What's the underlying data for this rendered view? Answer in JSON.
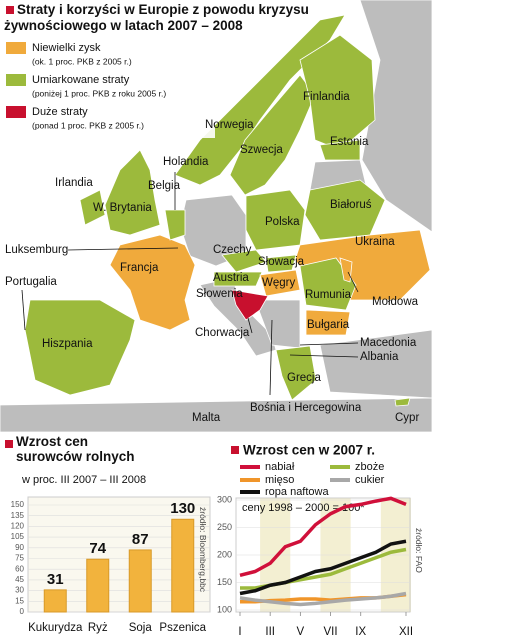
{
  "map": {
    "title": "Straty i korzyści w Europie z powodu kryzysu żywnościowego w latach 2007 – 2008",
    "legend": [
      {
        "label": "Niewielki zysk",
        "note": "(ok. 1 proc. PKB z 2005 r.)",
        "color": "#f0aa3c"
      },
      {
        "label": "Umiarkowane straty",
        "note": "(poniżej 1 proc. PKB z roku 2005 r.)",
        "color": "#9cba3c"
      },
      {
        "label": "Duże straty",
        "note": "(ponad 1 proc. PKB z 2005 r.)",
        "color": "#c8102e"
      }
    ],
    "labels": [
      "Finlandia",
      "Norwegia",
      "Szwecja",
      "Estonia",
      "Holandia",
      "Irlandia",
      "Belgia",
      "W. Brytania",
      "Białoruś",
      "Polska",
      "Ukraina",
      "Luksemburg",
      "Czechy",
      "Słowacja",
      "Francja",
      "Węgry",
      "Austria",
      "Portugalia",
      "Rumunia",
      "Słowenia",
      "Mołdowa",
      "Chorwacja",
      "Bułgaria",
      "Hiszpania",
      "Macedonia",
      "Albania",
      "Grecja",
      "Malta",
      "Bośnia i Hercegowina",
      "Cypr"
    ]
  },
  "chart_data": [
    {
      "type": "bar",
      "title": "Wzrost cen surowców rolnych",
      "subtitle": "w proc. III 2007 – III 2008",
      "categories": [
        "Kukurydza",
        "Ryż",
        "Soja",
        "Pszenica"
      ],
      "values": [
        31,
        74,
        87,
        130
      ],
      "color": "#f2b33d",
      "ylim": [
        0,
        150
      ],
      "yticks": [
        0,
        15,
        30,
        45,
        60,
        75,
        90,
        105,
        120,
        135,
        150
      ],
      "source": "źródło: Bloomberg,bbc"
    },
    {
      "type": "line",
      "title": "Wzrost cen w 2007 r.",
      "note": "ceny 1998 – 2000 = 100*",
      "categories": [
        "I",
        null,
        "III",
        null,
        "V",
        null,
        "VII",
        null,
        "IX",
        null,
        null,
        "XII"
      ],
      "series": [
        {
          "name": "nabiał",
          "color": "#d0103a",
          "values": [
            163,
            170,
            185,
            215,
            225,
            255,
            275,
            288,
            292,
            298,
            303,
            292
          ]
        },
        {
          "name": "zboże",
          "color": "#9cba3c",
          "values": [
            140,
            140,
            145,
            150,
            155,
            160,
            165,
            175,
            185,
            195,
            205,
            210
          ]
        },
        {
          "name": "mięso",
          "color": "#f0952a",
          "values": [
            115,
            115,
            117,
            118,
            120,
            120,
            118,
            120,
            122,
            122,
            125,
            128
          ]
        },
        {
          "name": "cukier",
          "color": "#a8a8a8",
          "values": [
            122,
            118,
            115,
            112,
            110,
            112,
            115,
            118,
            120,
            122,
            125,
            130
          ]
        },
        {
          "name": "ropa naftowa",
          "color": "#111111",
          "values": [
            130,
            135,
            145,
            150,
            160,
            170,
            175,
            185,
            195,
            205,
            220,
            225
          ]
        }
      ],
      "ylim": [
        100,
        300
      ],
      "yticks": [
        100,
        150,
        200,
        250,
        300
      ],
      "source": "źródło: FAO"
    }
  ]
}
